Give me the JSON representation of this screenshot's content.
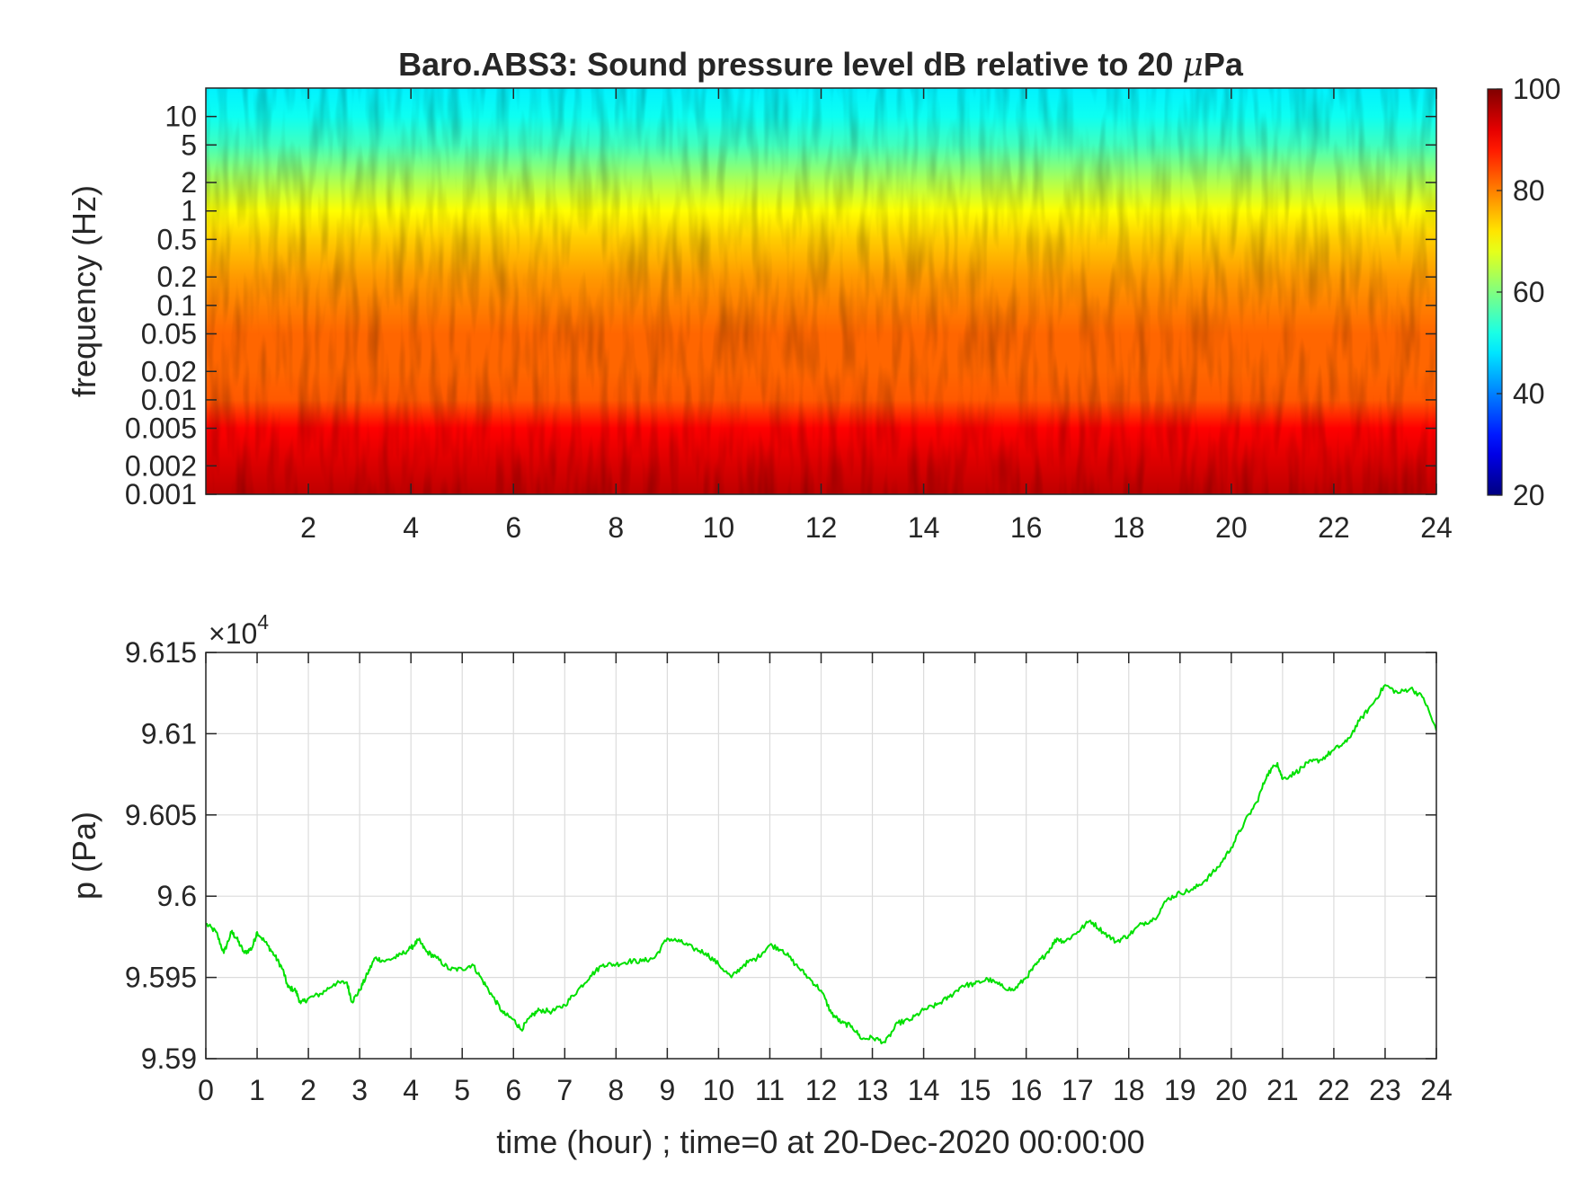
{
  "chart_data": [
    {
      "type": "heatmap",
      "title_prefix": "Baro.ABS3: Sound pressure level dB relative to 20 ",
      "title_mu": "μ",
      "title_suffix": "Pa",
      "xlabel": "",
      "ylabel": "frequency (Hz)",
      "x_ticks": [
        "2",
        "4",
        "6",
        "8",
        "10",
        "12",
        "14",
        "16",
        "18",
        "20",
        "22",
        "24"
      ],
      "x_tick_values": [
        2,
        4,
        6,
        8,
        10,
        12,
        14,
        16,
        18,
        20,
        22,
        24
      ],
      "xlim": [
        0,
        24
      ],
      "y_scale": "log",
      "ylim": [
        0.001,
        20
      ],
      "y_ticks": [
        "0.001",
        "0.002",
        "0.005",
        "0.01",
        "0.02",
        "0.05",
        "0.1",
        "0.2",
        "0.5",
        "1",
        "2",
        "5",
        "10"
      ],
      "y_tick_values": [
        0.001,
        0.002,
        0.005,
        0.01,
        0.02,
        0.05,
        0.1,
        0.2,
        0.5,
        1,
        2,
        5,
        10
      ],
      "colorbar": {
        "colormap": "jet",
        "clim": [
          20,
          100
        ],
        "ticks": [
          "20",
          "40",
          "60",
          "80",
          "100"
        ],
        "tick_values": [
          20,
          40,
          60,
          80,
          100
        ]
      },
      "level_profile": {
        "frequency_hz": [
          0.001,
          0.002,
          0.005,
          0.01,
          0.02,
          0.05,
          0.1,
          0.2,
          0.5,
          1,
          2,
          5,
          10,
          20
        ],
        "level_db_approx": [
          95,
          93,
          90,
          83,
          82,
          82,
          80,
          78,
          74,
          70,
          64,
          55,
          51,
          49
        ]
      }
    },
    {
      "type": "line",
      "title": "",
      "xlabel": "time (hour) ; time=0 at 20-Dec-2020 00:00:00",
      "ylabel": "p (Pa)",
      "exponent_base": "×10",
      "exponent_power": "4",
      "xlim": [
        0,
        24
      ],
      "ylim": [
        95900,
        96150
      ],
      "x_ticks": [
        "0",
        "1",
        "2",
        "3",
        "4",
        "5",
        "6",
        "7",
        "8",
        "9",
        "10",
        "11",
        "12",
        "13",
        "14",
        "15",
        "16",
        "17",
        "18",
        "19",
        "20",
        "21",
        "22",
        "23",
        "24"
      ],
      "x_tick_values": [
        0,
        1,
        2,
        3,
        4,
        5,
        6,
        7,
        8,
        9,
        10,
        11,
        12,
        13,
        14,
        15,
        16,
        17,
        18,
        19,
        20,
        21,
        22,
        23,
        24
      ],
      "y_ticks": [
        "9.59",
        "9.595",
        "9.6",
        "9.605",
        "9.61",
        "9.615"
      ],
      "y_tick_values": [
        95900,
        95950,
        96000,
        96050,
        96100,
        96150
      ],
      "grid": true,
      "series": [
        {
          "color": "#00e000",
          "x": [
            0,
            0.2,
            0.35,
            0.5,
            0.6,
            0.75,
            0.9,
            1.0,
            1.2,
            1.35,
            1.5,
            1.6,
            1.75,
            1.85,
            2.0,
            2.25,
            2.5,
            2.75,
            2.85,
            3.0,
            3.15,
            3.3,
            3.5,
            3.75,
            4.0,
            4.15,
            4.3,
            4.5,
            4.75,
            5.0,
            5.2,
            5.4,
            5.6,
            5.8,
            6.0,
            6.15,
            6.35,
            6.5,
            6.75,
            7.0,
            7.25,
            7.5,
            7.75,
            8.0,
            8.25,
            8.5,
            8.75,
            9.0,
            9.25,
            9.5,
            9.75,
            10.0,
            10.25,
            10.5,
            10.75,
            11.0,
            11.25,
            11.5,
            11.75,
            12.0,
            12.2,
            12.4,
            12.6,
            12.8,
            13.0,
            13.25,
            13.5,
            13.75,
            14.0,
            14.25,
            14.5,
            14.75,
            15.0,
            15.25,
            15.5,
            15.75,
            16.0,
            16.2,
            16.4,
            16.6,
            16.75,
            17.0,
            17.25,
            17.5,
            17.75,
            18.0,
            18.25,
            18.5,
            18.75,
            19.0,
            19.25,
            19.5,
            19.75,
            20.0,
            20.25,
            20.5,
            20.7,
            20.9,
            21.0,
            21.25,
            21.5,
            21.75,
            22.0,
            22.25,
            22.5,
            22.75,
            23.0,
            23.25,
            23.5,
            23.75,
            24.0
          ],
          "y": [
            95983,
            95978,
            95965,
            95978,
            95974,
            95965,
            95968,
            95978,
            95970,
            95963,
            95955,
            95944,
            95942,
            95934,
            95937,
            95940,
            95946,
            95947,
            95935,
            95942,
            95952,
            95962,
            95960,
            95963,
            95968,
            95973,
            95966,
            95962,
            95955,
            95955,
            95958,
            95948,
            95938,
            95928,
            95924,
            95918,
            95926,
            95930,
            95929,
            95933,
            95942,
            95951,
            95958,
            95958,
            95960,
            95960,
            95962,
            95974,
            95972,
            95968,
            95965,
            95958,
            95950,
            95958,
            95962,
            95970,
            95967,
            95958,
            95950,
            95942,
            95928,
            95922,
            95920,
            95912,
            95913,
            95910,
            95922,
            95924,
            95930,
            95933,
            95938,
            95945,
            95946,
            95949,
            95945,
            95942,
            95950,
            95958,
            95965,
            95974,
            95972,
            95978,
            95985,
            95978,
            95972,
            95976,
            95983,
            95986,
            95998,
            96002,
            96004,
            96010,
            96018,
            96030,
            96045,
            96058,
            96075,
            96082,
            96072,
            96076,
            96082,
            96084,
            96090,
            96095,
            96108,
            96118,
            96130,
            96125,
            96128,
            96122,
            96102
          ]
        }
      ]
    }
  ]
}
